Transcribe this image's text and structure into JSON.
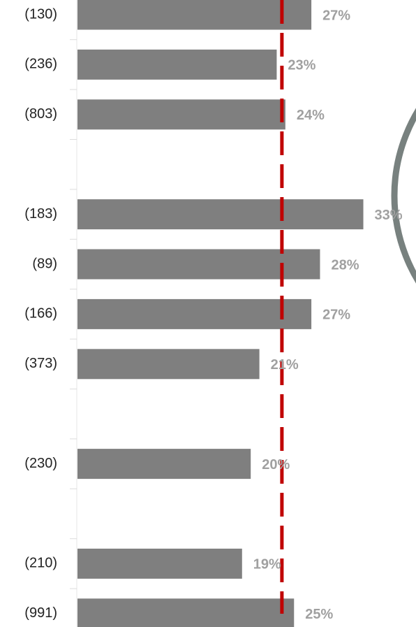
{
  "chart_data": {
    "type": "bar",
    "orientation": "horizontal",
    "categories": [
      "(130)",
      "(236)",
      "(803)",
      null,
      "(183)",
      "(89)",
      "(166)",
      "(373)",
      null,
      "(230)",
      null,
      "(210)",
      "(991)"
    ],
    "values": [
      27,
      23,
      24,
      null,
      33,
      28,
      27,
      21,
      null,
      20,
      null,
      19,
      25
    ],
    "value_labels": [
      "27%",
      "23%",
      "24%",
      null,
      "33%",
      "28%",
      "27%",
      "21%",
      null,
      "20%",
      null,
      "19%",
      "25%"
    ],
    "color": "#7f7f7f",
    "label_color": "#a0a0a0",
    "reference_line": {
      "value": 23.6,
      "color": "#c00000"
    },
    "xlim": [
      0,
      39
    ]
  }
}
